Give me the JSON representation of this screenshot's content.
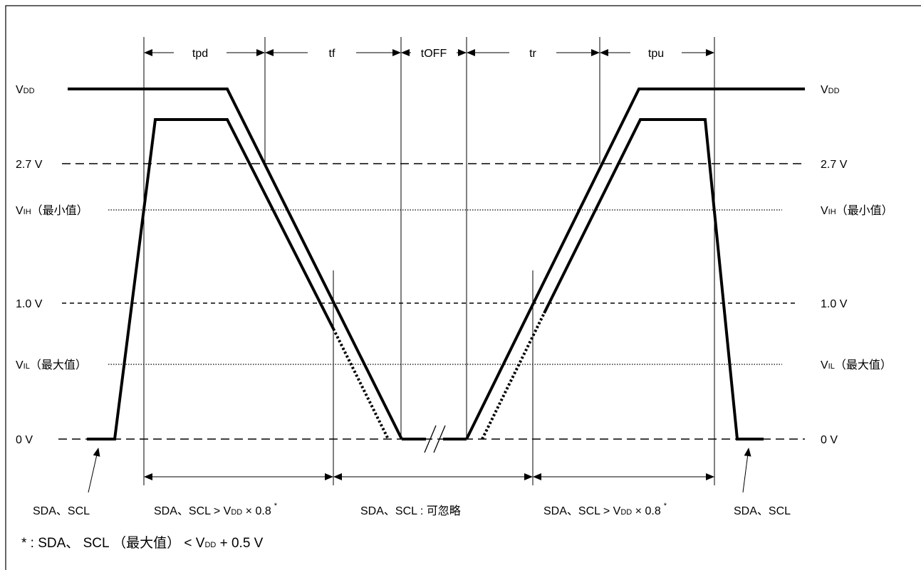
{
  "timing_labels": {
    "tpd": "tpd",
    "tf": "tf",
    "toff": "tOFF",
    "tr": "tr",
    "tpu": "tpu"
  },
  "levels": {
    "vdd": {
      "main": "V",
      "sub": "DD"
    },
    "v27": "2.7 V",
    "vih": {
      "main": "V",
      "sub": "IH",
      "suffix": "（最小值）"
    },
    "v10": "1.0 V",
    "vil": {
      "main": "V",
      "sub": "IL",
      "suffix": "（最大值）"
    },
    "v0": "0 V"
  },
  "region_labels": {
    "left_pin": "SDA、SCL",
    "region1": {
      "prefix": "SDA、SCL > V",
      "sub": "DD",
      "suffix": " × 0.8",
      "star": "*"
    },
    "region2": "SDA、SCL : 可忽略",
    "region3": {
      "prefix": "SDA、SCL > V",
      "sub": "DD",
      "suffix": " × 0.8",
      "star": "*"
    },
    "right_pin": "SDA、SCL"
  },
  "footnote": {
    "prefix": "* : SDA、 SCL （最大值） < V",
    "sub": "DD",
    "suffix": " + 0.5 V"
  }
}
